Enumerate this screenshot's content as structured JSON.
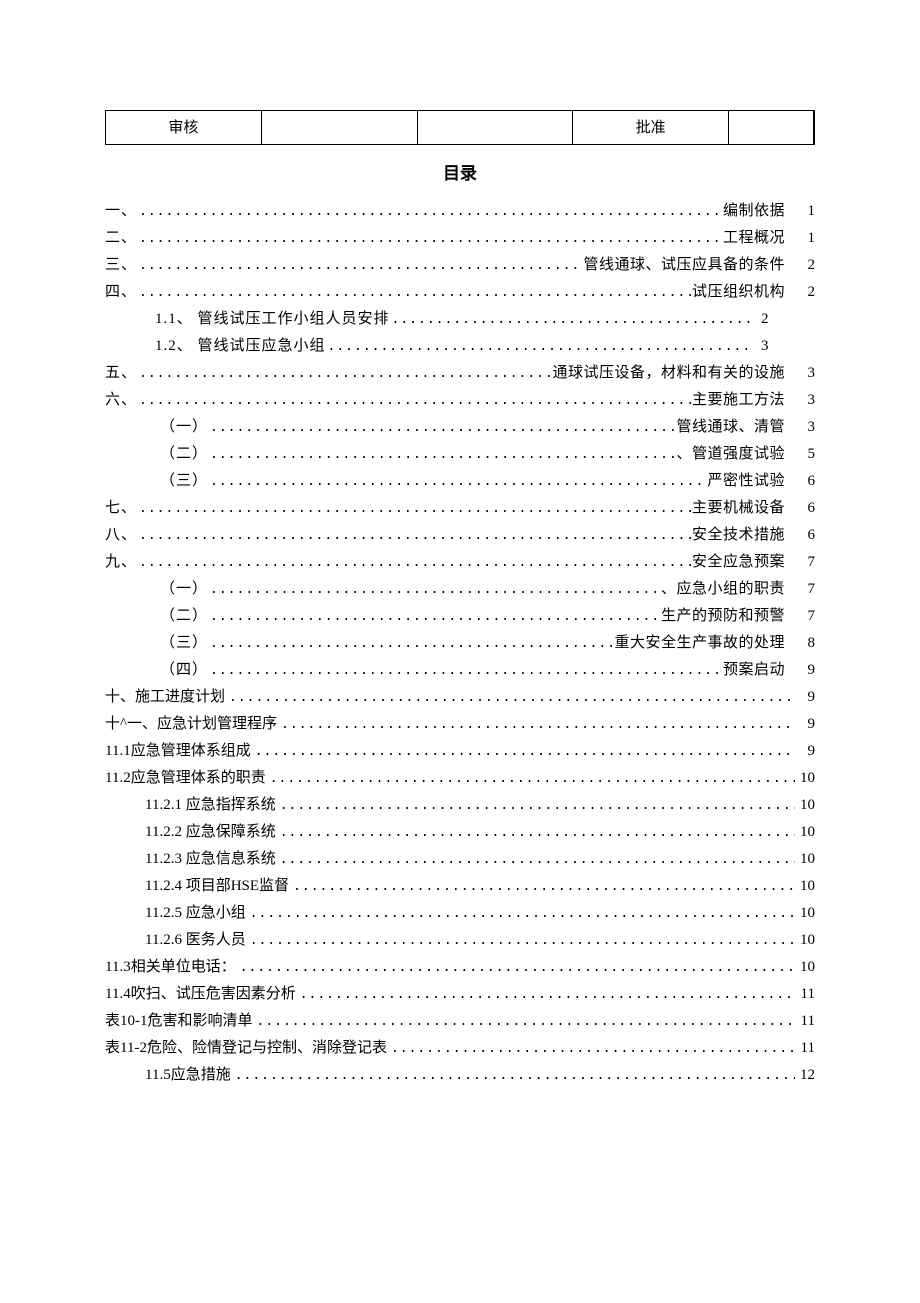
{
  "header": {
    "review_label": "审核",
    "approve_label": "批准"
  },
  "title": "目录",
  "toc": {
    "r1": {
      "label": "一、",
      "suffix": "编制依据",
      "page": "1"
    },
    "r2": {
      "label": "二、",
      "suffix": "工程概况",
      "page": "1"
    },
    "r3": {
      "label": "三、",
      "suffix": "管线通球、试压应具备的条件",
      "page": "2"
    },
    "r4": {
      "label": "四、",
      "suffix": "试压组织机构",
      "page": "2"
    },
    "r5": {
      "label": "1.1、 管线试压工作小组人员安排 ",
      "page": "2"
    },
    "r6": {
      "label": "1.2、 管线试压应急小组 ",
      "page": "3"
    },
    "r7": {
      "label": "五、",
      "suffix": "通球试压设备，材料和有关的设施",
      "page": "3"
    },
    "r8": {
      "label": "六、",
      "suffix": "主要施工方法",
      "page": "3"
    },
    "r9": {
      "label": "（一）",
      "suffix": "管线通球、清管",
      "page": "3"
    },
    "r10": {
      "label": "（二）",
      "suffix": "、管道强度试验",
      "page": "5"
    },
    "r11": {
      "label": "（三）",
      "suffix": "严密性试验",
      "page": "6"
    },
    "r12": {
      "label": "七、",
      "suffix": "主要机械设备",
      "page": "6"
    },
    "r13": {
      "label": "八、",
      "suffix": "安全技术措施",
      "page": "6"
    },
    "r14": {
      "label": "九、",
      "suffix": "安全应急预案",
      "page": "7"
    },
    "r15": {
      "label": "（一）",
      "suffix": "、应急小组的职责",
      "page": "7"
    },
    "r16": {
      "label": "（二）",
      "suffix": "生产的预防和预警",
      "page": "7"
    },
    "r17": {
      "label": "（三）",
      "suffix": "重大安全生产事故的处理",
      "page": "8"
    },
    "r18": {
      "label": "（四）",
      "suffix": "预案启动",
      "page": "9"
    },
    "r19": {
      "label": "十、施工进度计划 ",
      "page": "9"
    },
    "r20": {
      "label": "十^一、应急计划管理程序 ",
      "page": "9"
    },
    "r21": {
      "label": "11.1应急管理体系组成 ",
      "page": "9"
    },
    "r22": {
      "label": "11.2应急管理体系的职责 ",
      "page": "10"
    },
    "r23": {
      "label": "11.2.1  应急指挥系统 ",
      "page": "10"
    },
    "r24": {
      "label": "11.2.2  应急保障系统 ",
      "page": "10"
    },
    "r25": {
      "label": "11.2.3  应急信息系统 ",
      "page": "10"
    },
    "r26": {
      "label": "11.2.4  项目部HSE监督 ",
      "page": "10"
    },
    "r27": {
      "label": "11.2.5  应急小组 ",
      "page": "10"
    },
    "r28": {
      "label": "11.2.6  医务人员",
      "page": "10"
    },
    "r29": {
      "label": "11.3相关单位电话：",
      "page": "10"
    },
    "r30": {
      "label": "11.4吹扫、试压危害因素分析 ",
      "page": "11"
    },
    "r31": {
      "label": "表10-1危害和影响清单",
      "page": "11"
    },
    "r32": {
      "label": "表11-2危险、险情登记与控制、消除登记表 ",
      "page": "11"
    },
    "r33": {
      "label": "11.5应急措施",
      "page": "12"
    }
  },
  "dots": "................................................................................................................................................................",
  "style": {
    "font_size": 15,
    "title_font_size": 17,
    "text_color": "#000000",
    "bg_color": "#ffffff",
    "border_color": "#000000"
  }
}
